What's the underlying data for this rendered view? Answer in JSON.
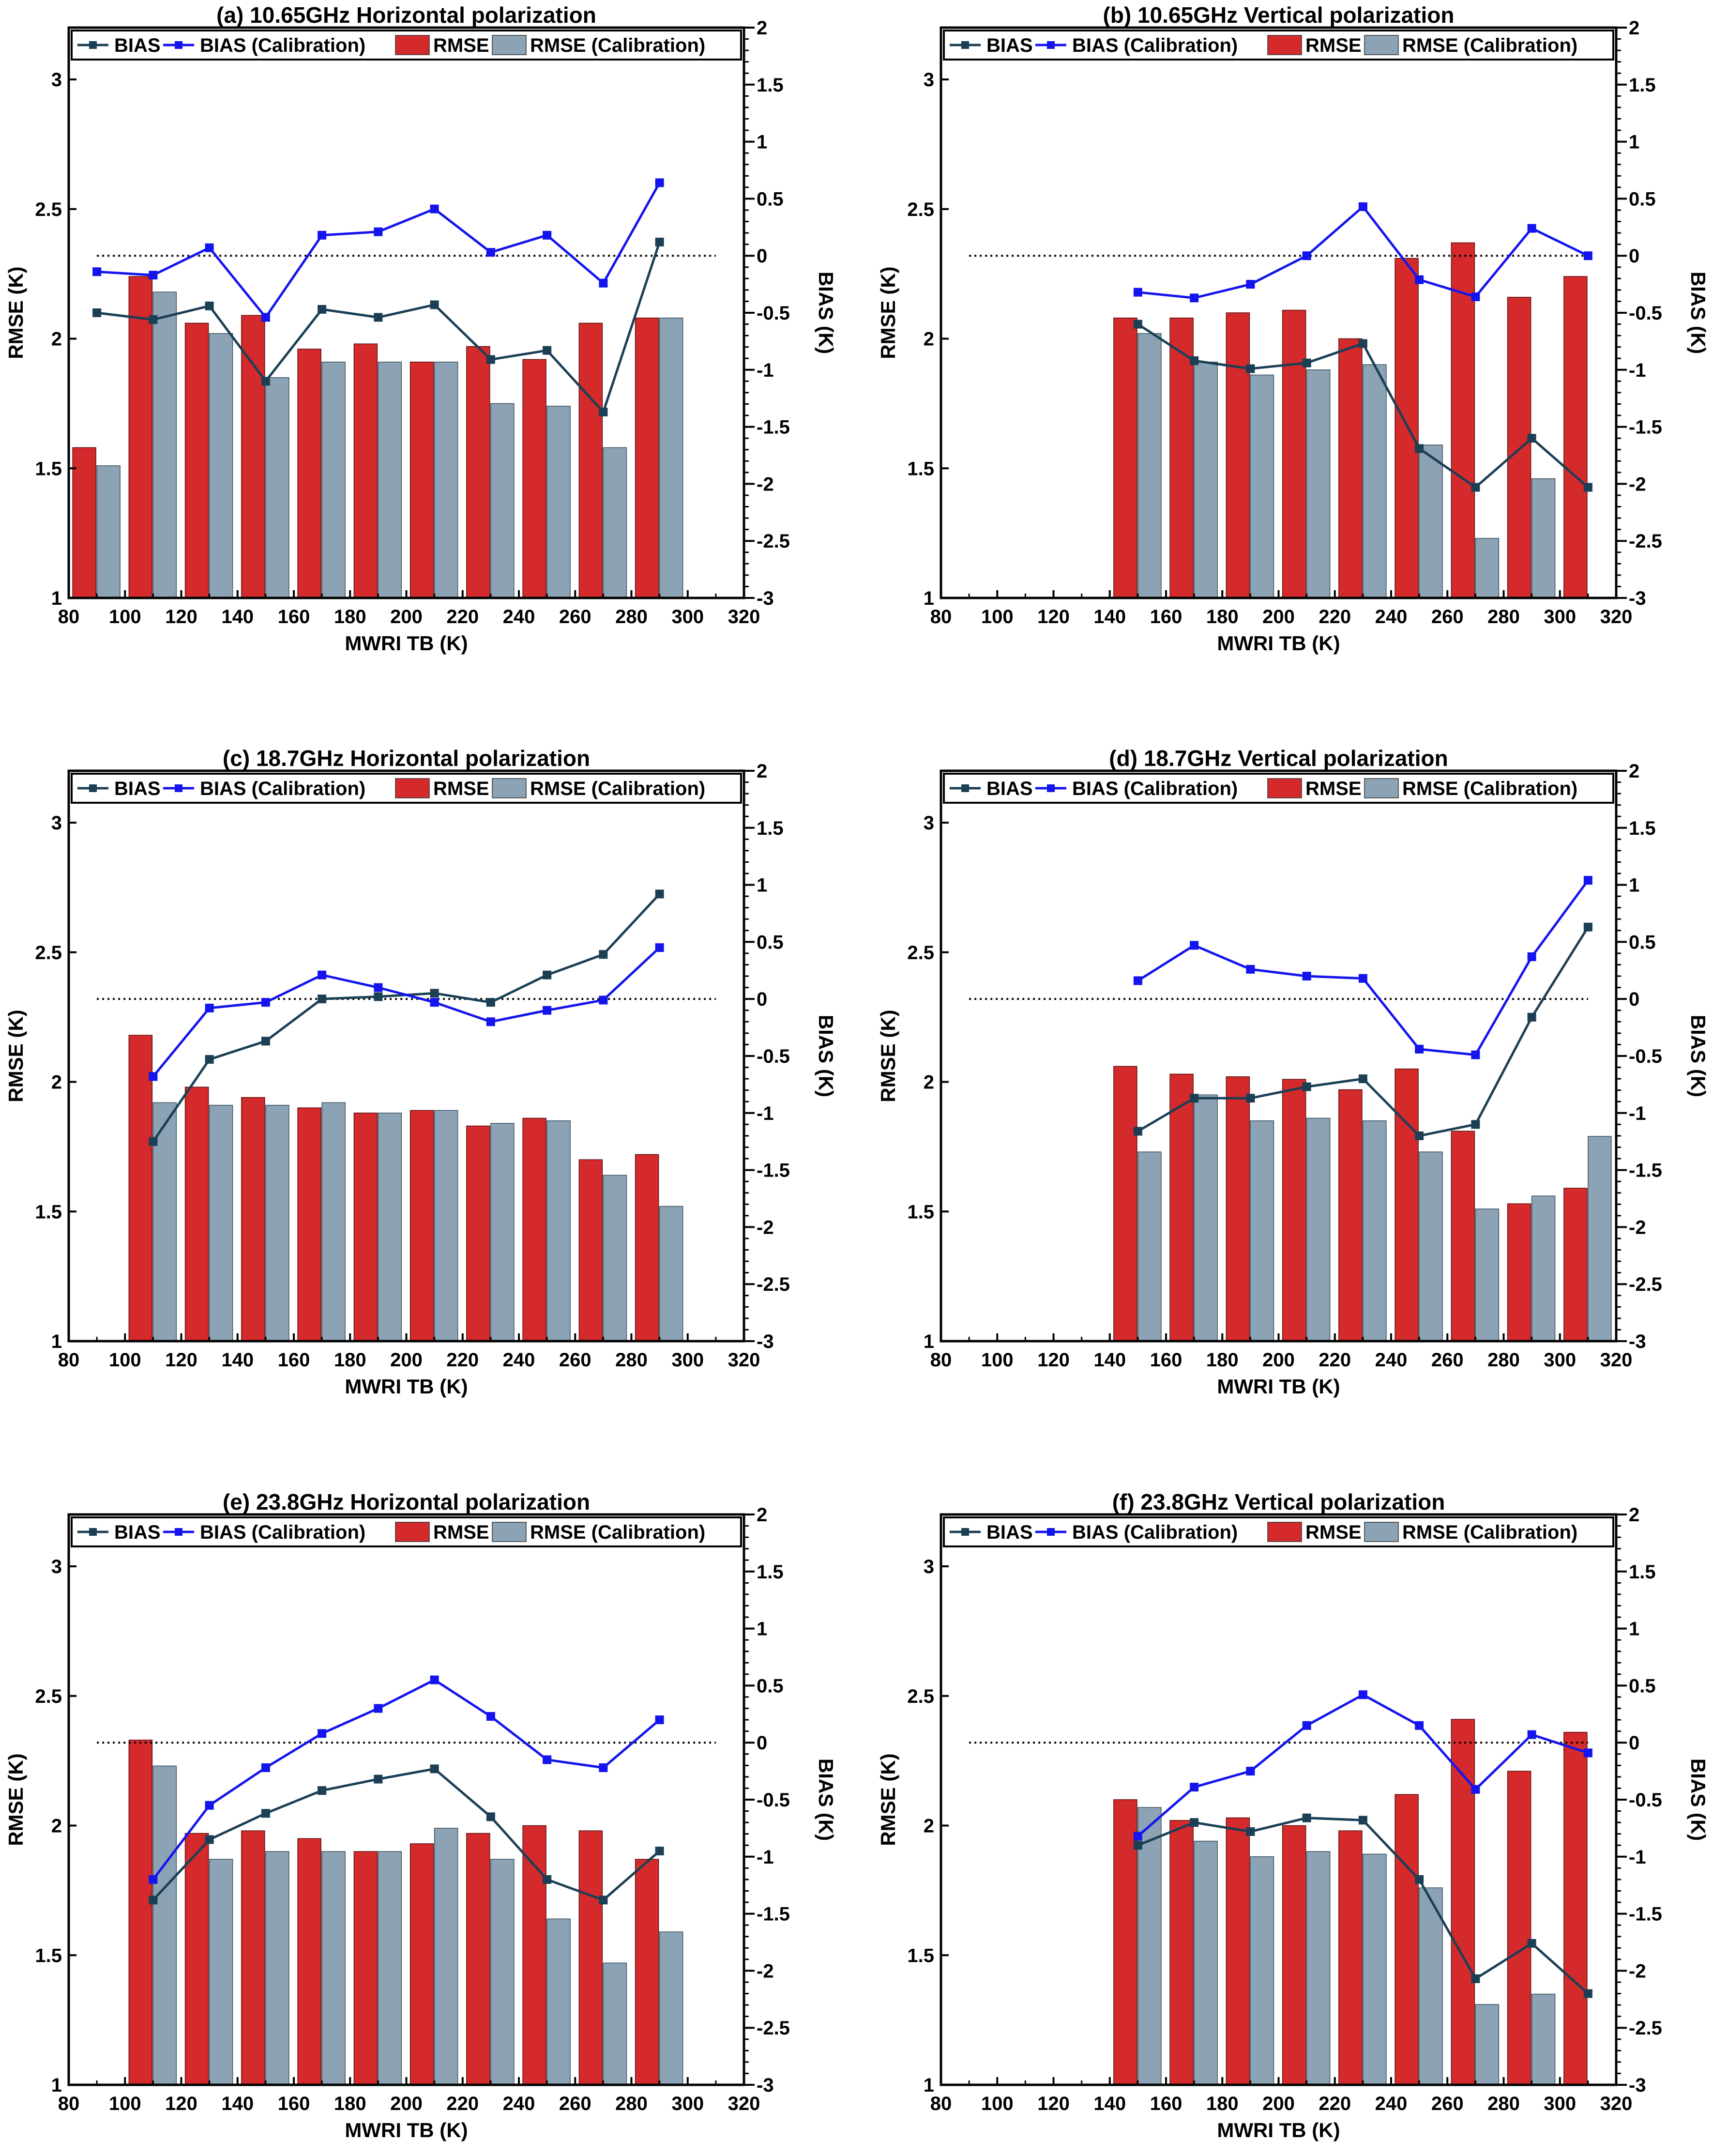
{
  "colors": {
    "rmse": "#d42a2c",
    "rmse_cal": "#8ba3b4",
    "bias": "#1b3f55",
    "bias_cal": "#1414ee"
  },
  "chart_data": [
    {
      "type": "bar+line",
      "title": "(a) 10.65GHz Horizontal polarization",
      "xlabel": "MWRI TB (K)",
      "ylabel": "RMSE (K)",
      "y2label": "BIAS (K)",
      "xlim": [
        80,
        320
      ],
      "ylim": [
        1,
        3.2
      ],
      "y2lim": [
        -3,
        2
      ],
      "x_ticks": [
        "80",
        "100",
        "120",
        "140",
        "160",
        "180",
        "200",
        "220",
        "240",
        "260",
        "280",
        "300",
        "320"
      ],
      "y_ticks": [
        "1",
        "1.5",
        "2",
        "2.5",
        "3"
      ],
      "y2_ticks": [
        "-3",
        "-2.5",
        "-2",
        "-1.5",
        "-1",
        "-0.5",
        "0",
        "0.5",
        "1",
        "1.5",
        "2"
      ],
      "legend": [
        "BIAS",
        "BIAS (Calibration)",
        "RMSE",
        "RMSE (Calibration)"
      ],
      "x": [
        90,
        110,
        130,
        150,
        170,
        190,
        210,
        230,
        250,
        270,
        290
      ],
      "series": [
        {
          "name": "RMSE",
          "values": [
            1.58,
            2.24,
            2.06,
            2.09,
            1.96,
            1.98,
            1.91,
            1.97,
            1.92,
            2.06,
            2.08
          ]
        },
        {
          "name": "RMSE (Calibration)",
          "values": [
            1.51,
            2.18,
            2.02,
            1.85,
            1.91,
            1.91,
            1.91,
            1.75,
            1.74,
            1.58,
            2.08
          ]
        },
        {
          "name": "BIAS",
          "values": [
            -0.5,
            -0.56,
            -0.44,
            -1.1,
            -0.47,
            -0.54,
            -0.43,
            -0.91,
            -0.83,
            -1.37,
            0.12
          ]
        },
        {
          "name": "BIAS (Calibration)",
          "values": [
            -0.14,
            -0.17,
            0.07,
            -0.54,
            0.18,
            0.21,
            0.41,
            0.03,
            0.18,
            -0.24,
            0.64
          ]
        }
      ],
      "reference_line": 0
    },
    {
      "type": "bar+line",
      "title": "(b) 10.65GHz Vertical polarization",
      "xlabel": "MWRI TB (K)",
      "ylabel": "RMSE (K)",
      "y2label": "BIAS (K)",
      "xlim": [
        80,
        320
      ],
      "ylim": [
        1,
        3.2
      ],
      "y2lim": [
        -3,
        2
      ],
      "x_ticks": [
        "80",
        "100",
        "120",
        "140",
        "160",
        "180",
        "200",
        "220",
        "240",
        "260",
        "280",
        "300",
        "320"
      ],
      "y_ticks": [
        "1",
        "1.5",
        "2",
        "2.5",
        "3"
      ],
      "y2_ticks": [
        "-3",
        "-2.5",
        "-2",
        "-1.5",
        "-1",
        "-0.5",
        "0",
        "0.5",
        "1",
        "1.5",
        "2"
      ],
      "legend": [
        "BIAS",
        "BIAS (Calibration)",
        "RMSE",
        "RMSE (Calibration)"
      ],
      "x": [
        150,
        170,
        190,
        210,
        230,
        250,
        270,
        290,
        310
      ],
      "series": [
        {
          "name": "RMSE",
          "values": [
            2.08,
            2.08,
            2.1,
            2.11,
            2.0,
            2.31,
            2.37,
            2.16,
            2.24
          ]
        },
        {
          "name": "RMSE (Calibration)",
          "values": [
            2.02,
            1.91,
            1.86,
            1.88,
            1.9,
            1.59,
            1.23,
            1.46,
            null
          ]
        },
        {
          "name": "BIAS",
          "values": [
            -0.6,
            -0.92,
            -0.99,
            -0.94,
            -0.77,
            -1.69,
            -2.03,
            -1.6,
            -2.03
          ]
        },
        {
          "name": "BIAS (Calibration)",
          "values": [
            -0.32,
            -0.37,
            -0.25,
            0.0,
            0.43,
            -0.21,
            -0.36,
            0.24,
            0.0
          ]
        }
      ],
      "reference_line": 0
    },
    {
      "type": "bar+line",
      "title": "(c) 18.7GHz Horizontal polarization",
      "xlabel": "MWRI TB (K)",
      "ylabel": "RMSE (K)",
      "y2label": "BIAS (K)",
      "xlim": [
        80,
        320
      ],
      "ylim": [
        1,
        3.2
      ],
      "y2lim": [
        -3,
        2
      ],
      "x_ticks": [
        "80",
        "100",
        "120",
        "140",
        "160",
        "180",
        "200",
        "220",
        "240",
        "260",
        "280",
        "300",
        "320"
      ],
      "y_ticks": [
        "1",
        "1.5",
        "2",
        "2.5",
        "3"
      ],
      "y2_ticks": [
        "-3",
        "-2.5",
        "-2",
        "-1.5",
        "-1",
        "-0.5",
        "0",
        "0.5",
        "1",
        "1.5",
        "2"
      ],
      "legend": [
        "BIAS",
        "BIAS (Calibration)",
        "RMSE",
        "RMSE (Calibration)"
      ],
      "x": [
        110,
        130,
        150,
        170,
        190,
        210,
        230,
        250,
        270,
        290
      ],
      "series": [
        {
          "name": "RMSE",
          "values": [
            2.18,
            1.98,
            1.94,
            1.9,
            1.88,
            1.89,
            1.83,
            1.86,
            1.7,
            1.72
          ]
        },
        {
          "name": "RMSE (Calibration)",
          "values": [
            1.92,
            1.91,
            1.91,
            1.92,
            1.88,
            1.89,
            1.84,
            1.85,
            1.64,
            1.52
          ]
        },
        {
          "name": "BIAS",
          "values": [
            -1.25,
            -0.53,
            -0.37,
            0.0,
            0.02,
            0.05,
            -0.03,
            0.21,
            0.39,
            0.92
          ]
        },
        {
          "name": "BIAS (Calibration)",
          "values": [
            -0.68,
            -0.08,
            -0.03,
            0.21,
            0.1,
            -0.03,
            -0.2,
            -0.1,
            -0.01,
            0.45
          ]
        }
      ],
      "reference_line": 0
    },
    {
      "type": "bar+line",
      "title": "(d) 18.7GHz Vertical polarization",
      "xlabel": "MWRI TB (K)",
      "ylabel": "RMSE (K)",
      "y2label": "BIAS (K)",
      "xlim": [
        80,
        320
      ],
      "ylim": [
        1,
        3.2
      ],
      "y2lim": [
        -3,
        2
      ],
      "x_ticks": [
        "80",
        "100",
        "120",
        "140",
        "160",
        "180",
        "200",
        "220",
        "240",
        "260",
        "280",
        "300",
        "320"
      ],
      "y_ticks": [
        "1",
        "1.5",
        "2",
        "2.5",
        "3"
      ],
      "y2_ticks": [
        "-3",
        "-2.5",
        "-2",
        "-1.5",
        "-1",
        "-0.5",
        "0",
        "0.5",
        "1",
        "1.5",
        "2"
      ],
      "legend": [
        "BIAS",
        "BIAS (Calibration)",
        "RMSE",
        "RMSE (Calibration)"
      ],
      "x": [
        150,
        170,
        190,
        210,
        230,
        250,
        270,
        290,
        310
      ],
      "series": [
        {
          "name": "RMSE",
          "values": [
            2.06,
            2.03,
            2.02,
            2.01,
            1.97,
            2.05,
            1.81,
            1.53,
            1.59
          ]
        },
        {
          "name": "RMSE (Calibration)",
          "values": [
            1.73,
            1.95,
            1.85,
            1.86,
            1.85,
            1.73,
            1.51,
            1.56,
            1.79
          ]
        },
        {
          "name": "BIAS",
          "values": [
            -1.16,
            -0.87,
            -0.87,
            -0.77,
            -0.7,
            -1.2,
            -1.1,
            -0.16,
            0.63
          ]
        },
        {
          "name": "BIAS (Calibration)",
          "values": [
            0.16,
            0.47,
            0.26,
            0.2,
            0.18,
            -0.44,
            -0.49,
            0.37,
            1.04
          ]
        }
      ],
      "reference_line": 0
    },
    {
      "type": "bar+line",
      "title": "(e) 23.8GHz Horizontal polarization",
      "xlabel": "MWRI TB (K)",
      "ylabel": "RMSE (K)",
      "y2label": "BIAS (K)",
      "xlim": [
        80,
        320
      ],
      "ylim": [
        1,
        3.2
      ],
      "y2lim": [
        -3,
        2
      ],
      "x_ticks": [
        "80",
        "100",
        "120",
        "140",
        "160",
        "180",
        "200",
        "220",
        "240",
        "260",
        "280",
        "300",
        "320"
      ],
      "y_ticks": [
        "1",
        "1.5",
        "2",
        "2.5",
        "3"
      ],
      "y2_ticks": [
        "-3",
        "-2.5",
        "-2",
        "-1.5",
        "-1",
        "-0.5",
        "0",
        "0.5",
        "1",
        "1.5",
        "2"
      ],
      "legend": [
        "BIAS",
        "BIAS (Calibration)",
        "RMSE",
        "RMSE (Calibration)"
      ],
      "x": [
        110,
        130,
        150,
        170,
        190,
        210,
        230,
        250,
        270,
        290
      ],
      "series": [
        {
          "name": "RMSE",
          "values": [
            2.33,
            1.97,
            1.98,
            1.95,
            1.9,
            1.93,
            1.97,
            2.0,
            1.98,
            1.87
          ]
        },
        {
          "name": "RMSE (Calibration)",
          "values": [
            2.23,
            1.87,
            1.9,
            1.9,
            1.9,
            1.99,
            1.87,
            1.64,
            1.47,
            1.59
          ]
        },
        {
          "name": "BIAS",
          "values": [
            -1.38,
            -0.85,
            -0.62,
            -0.42,
            -0.32,
            -0.23,
            -0.65,
            -1.2,
            -1.38,
            -0.95
          ]
        },
        {
          "name": "BIAS (Calibration)",
          "values": [
            -1.2,
            -0.55,
            -0.22,
            0.08,
            0.3,
            0.55,
            0.23,
            -0.15,
            -0.22,
            0.2
          ]
        }
      ],
      "reference_line": 0
    },
    {
      "type": "bar+line",
      "title": "(f) 23.8GHz Vertical polarization",
      "xlabel": "MWRI TB (K)",
      "ylabel": "RMSE (K)",
      "y2label": "BIAS (K)",
      "xlim": [
        80,
        320
      ],
      "ylim": [
        1,
        3.2
      ],
      "y2lim": [
        -3,
        2
      ],
      "x_ticks": [
        "80",
        "100",
        "120",
        "140",
        "160",
        "180",
        "200",
        "220",
        "240",
        "260",
        "280",
        "300",
        "320"
      ],
      "y_ticks": [
        "1",
        "1.5",
        "2",
        "2.5",
        "3"
      ],
      "y2_ticks": [
        "-3",
        "-2.5",
        "-2",
        "-1.5",
        "-1",
        "-0.5",
        "0",
        "0.5",
        "1",
        "1.5",
        "2"
      ],
      "legend": [
        "BIAS",
        "BIAS (Calibration)",
        "RMSE",
        "RMSE (Calibration)"
      ],
      "x": [
        150,
        170,
        190,
        210,
        230,
        250,
        270,
        290,
        310
      ],
      "series": [
        {
          "name": "RMSE",
          "values": [
            2.1,
            2.02,
            2.03,
            2.0,
            1.98,
            2.12,
            2.41,
            2.21,
            2.36
          ]
        },
        {
          "name": "RMSE (Calibration)",
          "values": [
            2.07,
            1.94,
            1.88,
            1.9,
            1.89,
            1.76,
            1.31,
            1.35,
            null
          ]
        },
        {
          "name": "BIAS",
          "values": [
            -0.9,
            -0.7,
            -0.78,
            -0.66,
            -0.68,
            -1.2,
            -2.07,
            -1.76,
            -2.2
          ]
        },
        {
          "name": "BIAS (Calibration)",
          "values": [
            -0.82,
            -0.39,
            -0.25,
            0.15,
            0.42,
            0.15,
            -0.41,
            0.07,
            -0.09
          ]
        }
      ],
      "reference_line": 0
    }
  ]
}
